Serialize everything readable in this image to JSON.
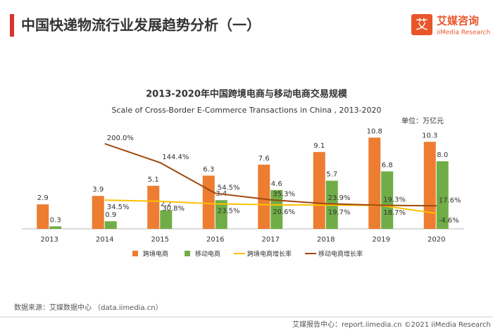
{
  "header": {
    "title": "中国快递物流行业发展趋势分析（一）",
    "logo": "艾媒咨询",
    "logo_en": "iiMedia Research"
  },
  "chart_data": {
    "type": "bar",
    "title": "2013-2020年中国跨境电商与移动电商交易规模",
    "subtitle": "Scale of Cross-Border E-Commerce Transactions in China , 2013-2020",
    "unit": "单位：万亿元",
    "categories": [
      "2013",
      "2014",
      "2015",
      "2016",
      "2017",
      "2018",
      "2019",
      "2020"
    ],
    "ylim": [
      0,
      12.5
    ],
    "y2lim": [
      -50,
      260
    ],
    "series": [
      {
        "name": "跨境电商",
        "color": "#ed7d31",
        "values": [
          2.9,
          3.9,
          5.1,
          6.3,
          7.6,
          9.1,
          10.8,
          10.3
        ]
      },
      {
        "name": "移动电商",
        "color": "#70ad47",
        "values": [
          0.3,
          0.9,
          2.2,
          3.4,
          4.6,
          5.7,
          6.8,
          8.0
        ],
        "value_labels": [
          "0.3",
          "0.9",
          "2.2",
          "3.4",
          "4.6",
          "5.7",
          "6.8",
          "8.0"
        ]
      },
      {
        "name": "跨境电商增长率",
        "color": "#ffc000",
        "axis": "y2",
        "type": "line",
        "values": [
          null,
          34.5,
          30.8,
          23.5,
          20.6,
          19.7,
          18.7,
          -4.6
        ],
        "value_labels": [
          null,
          "34.5%",
          "30.8%",
          "23.5%",
          "20.6%",
          "19.7%",
          "18.7%",
          "-4.6%"
        ]
      },
      {
        "name": "移动电商增长率",
        "color": "#9e480e",
        "axis": "y2",
        "type": "line",
        "values": [
          null,
          200.0,
          144.4,
          54.5,
          35.3,
          23.9,
          19.3,
          17.6
        ],
        "value_labels": [
          null,
          "200.0%",
          "144.4%",
          "54.5%",
          "35.3%",
          "23.9%",
          "19.3%",
          "17.6%"
        ]
      }
    ]
  },
  "source": "数据来源：艾媒数据中心 （data.iimedia.cn）",
  "footer": "艾媒报告中心：report.iimedia.cn   ©2021  iiMedia Research Inc"
}
